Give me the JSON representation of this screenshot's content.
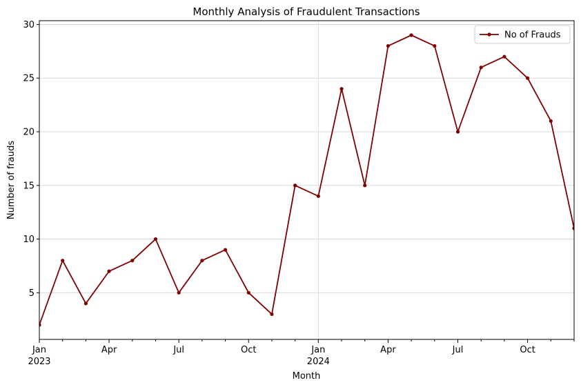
{
  "chart_data": {
    "type": "line",
    "title": "Monthly Analysis of Fraudulent Transactions",
    "xlabel": "Month",
    "ylabel": "Number of frauds",
    "x": [
      "2023-01",
      "2023-02",
      "2023-03",
      "2023-04",
      "2023-05",
      "2023-06",
      "2023-07",
      "2023-08",
      "2023-09",
      "2023-10",
      "2023-11",
      "2023-12",
      "2024-01",
      "2024-02",
      "2024-03",
      "2024-04",
      "2024-05",
      "2024-06",
      "2024-07",
      "2024-08",
      "2024-09",
      "2024-10",
      "2024-11",
      "2024-12"
    ],
    "series": [
      {
        "name": "No of Frauds",
        "color": "#800000",
        "values": [
          2,
          8,
          4,
          7,
          8,
          10,
          5,
          8,
          9,
          5,
          3,
          15,
          14,
          24,
          15,
          28,
          29,
          28,
          20,
          26,
          27,
          25,
          21,
          11
        ]
      }
    ],
    "ylim": [
      0.65,
      30.35
    ],
    "yticks": [
      5,
      10,
      15,
      20,
      25,
      30
    ],
    "xticks": [
      {
        "x": "2023-01",
        "label": "Jan",
        "sublabel": "2023"
      },
      {
        "x": "2023-04",
        "label": "Apr"
      },
      {
        "x": "2023-07",
        "label": "Jul"
      },
      {
        "x": "2023-10",
        "label": "Oct"
      },
      {
        "x": "2024-01",
        "label": "Jan",
        "sublabel": "2024"
      },
      {
        "x": "2024-04",
        "label": "Apr"
      },
      {
        "x": "2024-07",
        "label": "Jul"
      },
      {
        "x": "2024-10",
        "label": "Oct"
      }
    ],
    "grid": true,
    "legend": "upper right"
  }
}
